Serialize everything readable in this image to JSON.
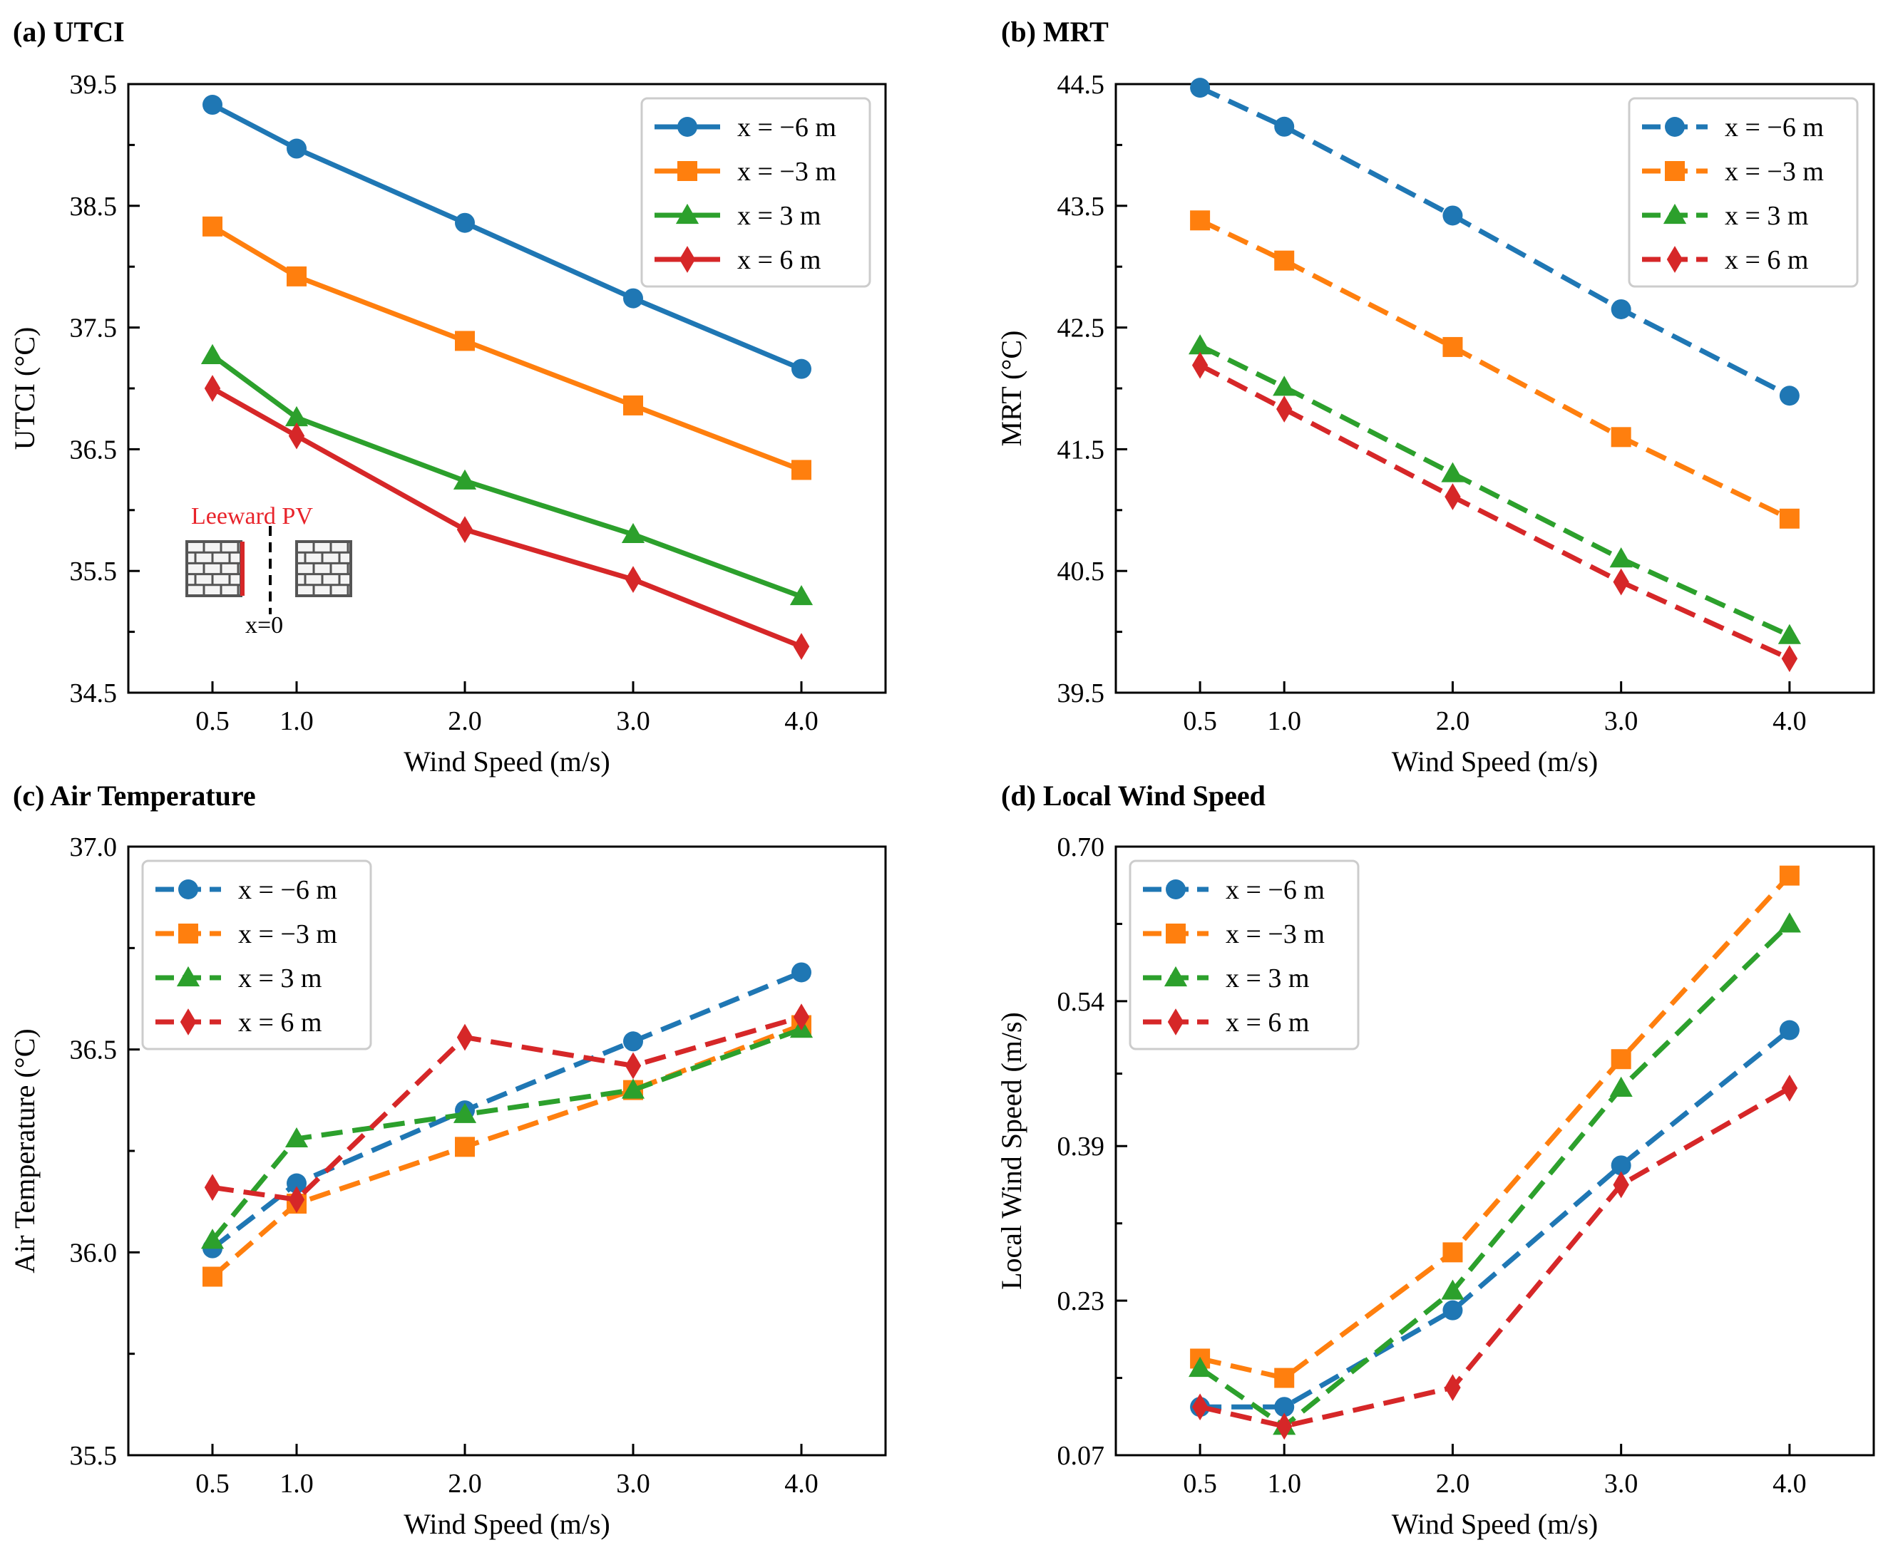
{
  "colors": {
    "x_m6": "#1f77b4",
    "x_m3": "#ff7f0e",
    "x_3": "#2ca02c",
    "x_6": "#d62728",
    "axis": "#000000",
    "inset_text": "#e8232a",
    "wall_fill": "#f4f4f4",
    "wall_stroke": "#555555"
  },
  "legend_labels": [
    "x = −6 m",
    "x = −3 m",
    "x = 3 m",
    "x = 6 m"
  ],
  "inset": {
    "label": "Leeward PV",
    "x0_label": "x=0"
  },
  "chart_data": [
    {
      "id": "a",
      "type": "line",
      "panel_label": "(a) UTCI",
      "title": "UTCI",
      "xlabel": "Wind Speed (m/s)",
      "ylabel": "UTCI (°C)",
      "x": [
        0.5,
        1.0,
        2.0,
        3.0,
        4.0
      ],
      "x_tick_labels": [
        "0.5",
        "1.0",
        "2.0",
        "3.0",
        "4.0"
      ],
      "xlim": [
        0.0,
        4.5
      ],
      "ylim": [
        34.5,
        39.5
      ],
      "y_ticks": [
        34.5,
        35.5,
        36.5,
        37.5,
        38.5,
        39.5
      ],
      "y_tick_labels": [
        "34.5",
        "35.5",
        "36.5",
        "37.5",
        "38.5",
        "39.5"
      ],
      "y_minor_ticks": [
        35.0,
        36.0,
        37.0,
        38.0,
        39.0
      ],
      "line_style": "solid",
      "legend_position": "top-right",
      "series": [
        {
          "name": "x = −6 m",
          "color": "#1f77b4",
          "marker": "circle",
          "values": [
            39.33,
            38.97,
            38.36,
            37.74,
            37.16
          ]
        },
        {
          "name": "x = −3 m",
          "color": "#ff7f0e",
          "marker": "square",
          "values": [
            38.33,
            37.92,
            37.39,
            36.86,
            36.33
          ]
        },
        {
          "name": "x = 3 m",
          "color": "#2ca02c",
          "marker": "triangle",
          "values": [
            37.27,
            36.76,
            36.24,
            35.8,
            35.29
          ]
        },
        {
          "name": "x = 6 m",
          "color": "#d62728",
          "marker": "diamond",
          "values": [
            37.0,
            36.61,
            35.84,
            35.43,
            34.88
          ]
        }
      ]
    },
    {
      "id": "b",
      "type": "line",
      "panel_label": "(b) MRT",
      "title": "MRT",
      "xlabel": "Wind Speed (m/s)",
      "ylabel": "MRT (°C)",
      "x": [
        0.5,
        1.0,
        2.0,
        3.0,
        4.0
      ],
      "x_tick_labels": [
        "0.5",
        "1.0",
        "2.0",
        "3.0",
        "4.0"
      ],
      "xlim": [
        0.0,
        4.5
      ],
      "ylim": [
        39.5,
        44.5
      ],
      "y_ticks": [
        39.5,
        40.5,
        41.5,
        42.5,
        43.5,
        44.5
      ],
      "y_tick_labels": [
        "39.5",
        "40.5",
        "41.5",
        "42.5",
        "43.5",
        "44.5"
      ],
      "y_minor_ticks": [
        40.0,
        41.0,
        42.0,
        43.0,
        44.0
      ],
      "line_style": "dashed",
      "legend_position": "top-right",
      "series": [
        {
          "name": "x = −6 m",
          "color": "#1f77b4",
          "marker": "circle",
          "values": [
            44.47,
            44.15,
            43.42,
            42.65,
            41.94
          ]
        },
        {
          "name": "x = −3 m",
          "color": "#ff7f0e",
          "marker": "square",
          "values": [
            43.38,
            43.05,
            42.34,
            41.6,
            40.93
          ]
        },
        {
          "name": "x = 3 m",
          "color": "#2ca02c",
          "marker": "triangle",
          "values": [
            42.35,
            42.01,
            41.3,
            40.6,
            39.97
          ]
        },
        {
          "name": "x = 6 m",
          "color": "#d62728",
          "marker": "diamond",
          "values": [
            42.19,
            41.83,
            41.11,
            40.41,
            39.78
          ]
        }
      ]
    },
    {
      "id": "c",
      "type": "line",
      "panel_label": "(c) Air Temperature",
      "title": "Air Temperature",
      "xlabel": "Wind Speed (m/s)",
      "ylabel": "Air Temperature (°C)",
      "x": [
        0.5,
        1.0,
        2.0,
        3.0,
        4.0
      ],
      "x_tick_labels": [
        "0.5",
        "1.0",
        "2.0",
        "3.0",
        "4.0"
      ],
      "xlim": [
        0.0,
        4.5
      ],
      "ylim": [
        35.5,
        37.0
      ],
      "y_ticks": [
        35.5,
        36.0,
        36.5,
        37.0
      ],
      "y_tick_labels": [
        "35.5",
        "36.0",
        "36.5",
        "37.0"
      ],
      "y_minor_ticks": [
        35.75,
        36.25,
        36.75
      ],
      "line_style": "dashed",
      "legend_position": "top-left",
      "series": [
        {
          "name": "x = −6 m",
          "color": "#1f77b4",
          "marker": "circle",
          "values": [
            36.01,
            36.17,
            36.35,
            36.52,
            36.69
          ]
        },
        {
          "name": "x = −3 m",
          "color": "#ff7f0e",
          "marker": "square",
          "values": [
            35.94,
            36.12,
            36.26,
            36.4,
            36.56
          ]
        },
        {
          "name": "x = 3 m",
          "color": "#2ca02c",
          "marker": "triangle",
          "values": [
            36.03,
            36.28,
            36.34,
            36.4,
            36.55
          ]
        },
        {
          "name": "x = 6 m",
          "color": "#d62728",
          "marker": "diamond",
          "values": [
            36.16,
            36.13,
            36.53,
            36.46,
            36.58
          ]
        }
      ]
    },
    {
      "id": "d",
      "type": "line",
      "panel_label": "(d) Local Wind Speed",
      "title": "Local Wind Speed",
      "xlabel": "Wind Speed (m/s)",
      "ylabel": "Local Wind Speed (m/s)",
      "x": [
        0.5,
        1.0,
        2.0,
        3.0,
        4.0
      ],
      "x_tick_labels": [
        "0.5",
        "1.0",
        "2.0",
        "3.0",
        "4.0"
      ],
      "xlim": [
        0.0,
        4.5
      ],
      "ylim": [
        0.07,
        0.7
      ],
      "y_ticks": [
        0.07,
        0.23,
        0.39,
        0.54,
        0.7
      ],
      "y_tick_labels": [
        "0.07",
        "0.23",
        "0.39",
        "0.54",
        "0.70"
      ],
      "y_minor_ticks": [
        0.15,
        0.31,
        0.465,
        0.62
      ],
      "line_style": "dashed",
      "legend_position": "top-left",
      "series": [
        {
          "name": "x = −6 m",
          "color": "#1f77b4",
          "marker": "circle",
          "values": [
            0.12,
            0.12,
            0.22,
            0.37,
            0.51
          ]
        },
        {
          "name": "x = −3 m",
          "color": "#ff7f0e",
          "marker": "square",
          "values": [
            0.17,
            0.15,
            0.28,
            0.48,
            0.67
          ]
        },
        {
          "name": "x = 3 m",
          "color": "#2ca02c",
          "marker": "triangle",
          "values": [
            0.16,
            0.1,
            0.24,
            0.45,
            0.62
          ]
        },
        {
          "name": "x = 6 m",
          "color": "#d62728",
          "marker": "diamond",
          "values": [
            0.12,
            0.1,
            0.14,
            0.35,
            0.45
          ]
        }
      ]
    }
  ]
}
